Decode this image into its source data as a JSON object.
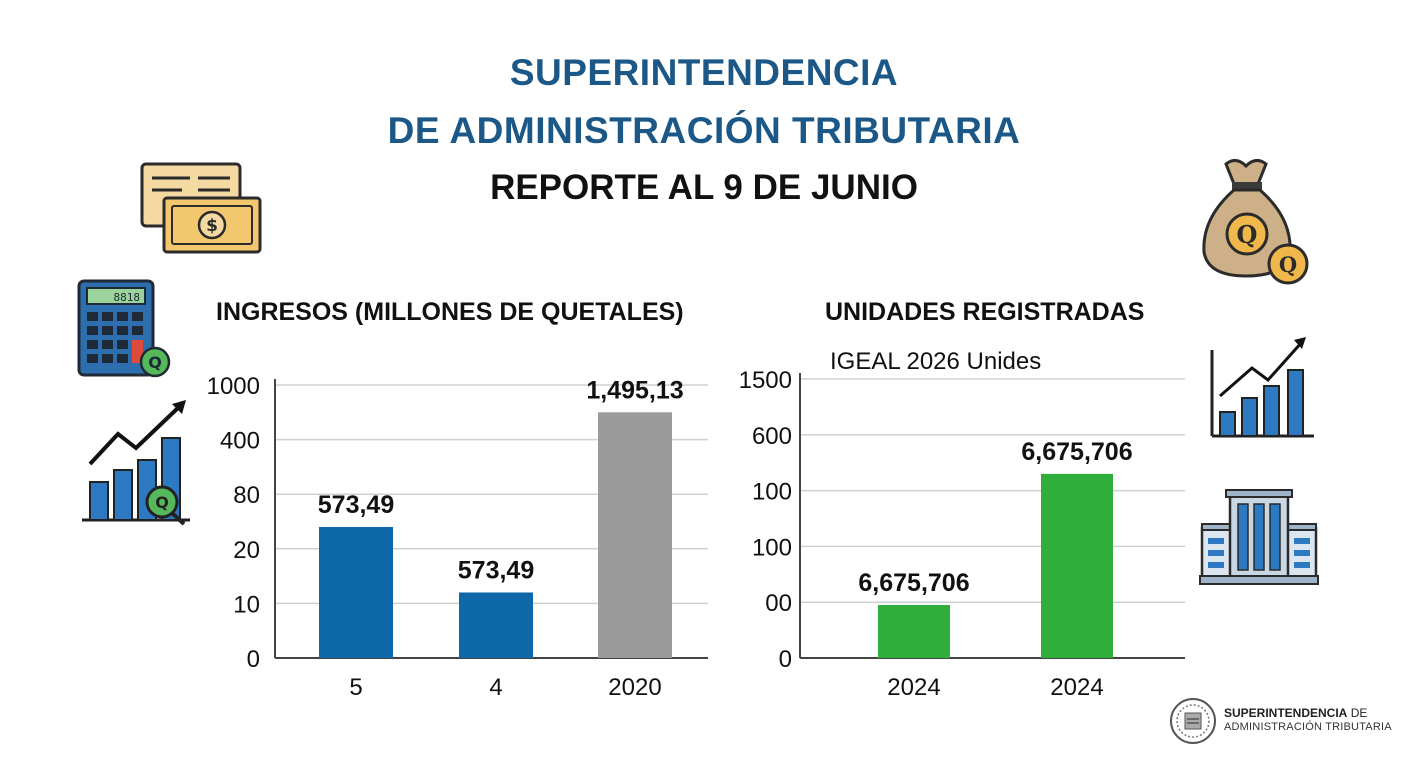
{
  "header": {
    "title_line1": "SUPERINTENDENCIA",
    "title_line2": "DE ADMINISTRACIÓN TRIBUTARIA",
    "subtitle": "REPORTE AL 9 DE JUNIO"
  },
  "chart_data": [
    {
      "type": "bar",
      "title": "INGRESOS (MILLONES DE QUETALES)",
      "categories": [
        "5",
        "4",
        "2020"
      ],
      "values": [
        573.49,
        573.49,
        1495.13
      ],
      "data_labels": [
        "573,49",
        "573,49",
        "1,495,13"
      ],
      "bar_colors": [
        "#0f68a8",
        "#0f68a8",
        "#9b9b9b"
      ],
      "yticks": [
        "0",
        "10",
        "20",
        "80",
        "400",
        "1000"
      ],
      "tick_levels": [
        0,
        1,
        2,
        3,
        4,
        5
      ],
      "bar_levels": [
        2.4,
        1.2,
        4.5
      ],
      "grid": true
    },
    {
      "type": "bar",
      "title": "UNIDADES REGISTRADAS",
      "subtitle": "IGEAL 2026 Unides",
      "categories": [
        "2024",
        "2024"
      ],
      "values": [
        6675706,
        6675706
      ],
      "data_labels": [
        "6,675,706",
        "6,675,706"
      ],
      "bar_colors": [
        "#2fae3c",
        "#2fae3c"
      ],
      "yticks": [
        "0",
        "00",
        "100",
        "100",
        "600",
        "1500"
      ],
      "tick_levels": [
        0,
        1,
        2,
        3,
        4,
        5
      ],
      "bar_levels": [
        0.95,
        3.3
      ],
      "grid": true
    }
  ],
  "logo": {
    "line1_bold": "SUPERINTENDENCIA",
    "line1_rest": " DE",
    "line2": "ADMINISTRACIÓN TRIBUTARIA"
  },
  "icons": [
    "money-bills-icon",
    "calculator-icon",
    "growth-chart-q-icon",
    "money-bag-q-icon",
    "bar-chart-arrow-icon",
    "building-icon",
    "sat-seal-icon"
  ],
  "colors": {
    "title": "#1c5887",
    "blue_bar": "#0f68a8",
    "gray_bar": "#9b9b9b",
    "green_bar": "#2fae3c"
  }
}
